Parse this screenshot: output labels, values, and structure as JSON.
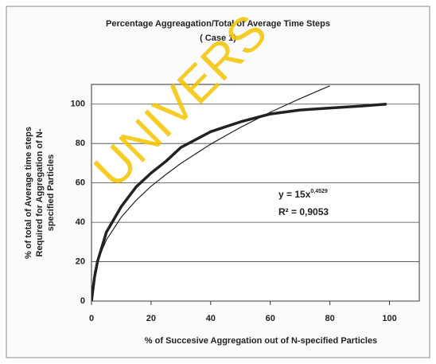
{
  "chart_data": {
    "type": "line",
    "title": "Percentage Aggreagation/Total of Average Time Steps",
    "subtitle": "( Case 1)",
    "x_label": "% of Succesive Aggregation out of N-specified Particles",
    "y_label": [
      "% of total of Average time steps",
      "Required for Aggregation of N-",
      "specified Particles"
    ],
    "watermark": "UNIVERS",
    "annotations": {
      "equation": "y = 15x",
      "exponent": "0,4529",
      "r_squared": "R² = 0,9053"
    },
    "x": [
      0,
      1,
      2,
      5,
      10,
      15,
      20,
      25,
      30,
      40,
      50,
      60,
      70,
      80,
      90,
      99
    ],
    "series": [
      {
        "color": "#222222",
        "width": 3.5,
        "values": [
          0,
          12,
          20,
          35,
          48,
          58,
          65,
          71,
          78,
          86,
          91,
          95,
          97,
          98,
          99,
          100
        ]
      },
      {
        "color": "#222222",
        "width": 1.2,
        "values": [
          0,
          15,
          20.5,
          31.1,
          42.6,
          51.2,
          58.3,
          64.3,
          69.9,
          79.7,
          88.2,
          95.9,
          102.8,
          109.3,
          null,
          null
        ]
      }
    ],
    "xlim": [
      0,
      110
    ],
    "ylim": [
      0,
      110
    ],
    "xticks": [
      0,
      20,
      40,
      60,
      80,
      100
    ],
    "yticks": [
      0,
      20,
      40,
      60,
      80,
      100
    ],
    "grid": true
  }
}
